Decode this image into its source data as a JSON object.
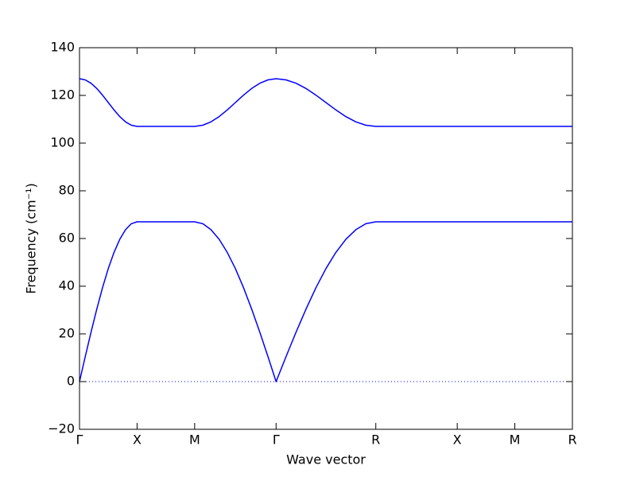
{
  "chart_data": {
    "type": "line",
    "x_label": "Wave vector",
    "y_label": "Frequency (cm⁻¹)",
    "x": [
      0,
      0.05,
      0.1,
      0.15,
      0.2,
      0.25,
      0.3,
      0.35,
      0.4,
      0.45,
      0.5,
      1.0,
      1.0707,
      1.1414,
      1.2121,
      1.2828,
      1.3536,
      1.4243,
      1.495,
      1.5657,
      1.6364,
      1.7071,
      1.7937,
      1.8803,
      1.9669,
      2.0535,
      2.1401,
      2.2267,
      2.3133,
      2.3999,
      2.4865,
      2.5731,
      3.2802,
      3.7802,
      4.2802
    ],
    "series": [
      {
        "color": "#0000ff",
        "values": [
          0,
          10.5,
          20.7,
          30.4,
          39.4,
          47.4,
          54.2,
          59.7,
          63.7,
          66.2,
          67,
          67,
          66.2,
          63.7,
          59.7,
          54.2,
          47.4,
          39.4,
          30.4,
          20.7,
          10.5,
          0,
          10.5,
          20.7,
          30.4,
          39.4,
          47.4,
          54.2,
          59.7,
          63.7,
          66.2,
          67,
          67,
          67,
          67
        ]
      },
      {
        "color": "#0000ff",
        "values": [
          127,
          126.5,
          125.1,
          122.9,
          120.1,
          117,
          113.9,
          111.1,
          108.9,
          107.5,
          107,
          107,
          107.5,
          108.9,
          111.1,
          113.9,
          117,
          120.1,
          122.9,
          125.1,
          126.5,
          127,
          126.5,
          125.1,
          122.9,
          120.1,
          117,
          113.9,
          111.1,
          108.9,
          107.5,
          107,
          107,
          107,
          107
        ]
      }
    ],
    "hlines": [
      0
    ],
    "xlim": [
      0,
      4.2802
    ],
    "xticks": [
      {
        "value": 0,
        "label": "Γ"
      },
      {
        "value": 0.5,
        "label": "X"
      },
      {
        "value": 1.0,
        "label": "M"
      },
      {
        "value": 1.7071,
        "label": "Γ"
      },
      {
        "value": 2.5731,
        "label": "R"
      },
      {
        "value": 3.2802,
        "label": "X"
      },
      {
        "value": 3.7802,
        "label": "M"
      },
      {
        "value": 4.2802,
        "label": "R"
      }
    ],
    "ylim": [
      -20,
      140
    ],
    "yticks": [
      {
        "value": -20,
        "label": "−20"
      },
      0,
      20,
      40,
      60,
      80,
      100,
      120,
      140
    ]
  }
}
